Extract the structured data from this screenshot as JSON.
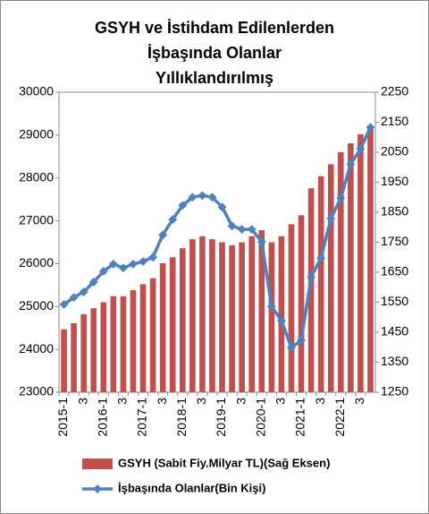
{
  "chart_data": {
    "type": "bar_line",
    "title": [
      "GSYH ve İstihdam Edilenlerden",
      "İşbaşında Olanlar",
      "Yıllıklandırılmış"
    ],
    "categories": [
      "2015-1",
      null,
      "3",
      null,
      "2016-1",
      null,
      "3",
      null,
      "2017-1",
      null,
      "3",
      null,
      "2018-1",
      null,
      "3",
      null,
      "2019-1",
      null,
      "3",
      null,
      "2020-1",
      null,
      "3",
      null,
      "2021-1",
      null,
      "3",
      null,
      "2022-1",
      null,
      "3",
      null
    ],
    "series": [
      {
        "name": "GSYH (Sabit Fiy.Milyar TL)(Sağ Eksen)",
        "type": "bar",
        "axis": "y2",
        "color": "#c0504d",
        "values": [
          1460,
          1480,
          1510,
          1530,
          1550,
          1570,
          1570,
          1590,
          1610,
          1630,
          1680,
          1700,
          1730,
          1760,
          1770,
          1760,
          1750,
          1740,
          1750,
          1770,
          1790,
          1750,
          1770,
          1810,
          1840,
          1930,
          1970,
          2010,
          2050,
          2080,
          2110,
          2130
        ]
      },
      {
        "name": "İşbaşında Olanlar(Bin Kişi)",
        "type": "line",
        "axis": "y",
        "color": "#4f81bd",
        "values": [
          25050,
          25210,
          25340,
          25570,
          25820,
          25990,
          25900,
          25990,
          26050,
          26150,
          26670,
          27030,
          27360,
          27550,
          27590,
          27550,
          27320,
          26880,
          26800,
          26800,
          26510,
          25000,
          24670,
          24040,
          24210,
          25690,
          26130,
          27050,
          27530,
          28320,
          28680,
          29180
        ]
      }
    ],
    "ylim": [
      23000,
      30000
    ],
    "yticks": [
      23000,
      24000,
      25000,
      26000,
      27000,
      28000,
      29000,
      30000
    ],
    "y2lim": [
      1250,
      2250
    ],
    "y2ticks": [
      1250,
      1350,
      1450,
      1550,
      1650,
      1750,
      1850,
      1950,
      2050,
      2150,
      2250
    ]
  }
}
